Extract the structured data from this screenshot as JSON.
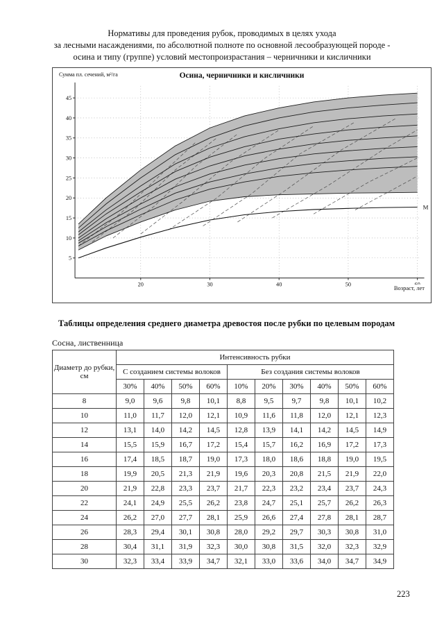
{
  "page": {
    "title_lines": [
      "Нормативы для проведения рубок, проводимых в целях ухода",
      "за лесными насаждениями, по абсолютной полноте по основной лесообразующей породе -",
      "осина и типу (группе) условий местопроизрастания – черничники и кисличники"
    ],
    "section_heading": "Таблицы определения среднего диаметра древостоя после рубки по целевым породам",
    "subheading": "Сосна, лиственница",
    "page_number": "223"
  },
  "chart": {
    "title": "Осина, черничники и кисличники",
    "y_axis_label": "Сумма пл. сечений, м²/га",
    "x_axis_label": "Возраст, лет",
    "y_ticks": [
      5,
      10,
      15,
      20,
      25,
      30,
      35,
      40,
      45
    ],
    "x_ticks": [
      20,
      30,
      40,
      50,
      60
    ],
    "annotation": "М"
  },
  "chart_data": {
    "type": "line",
    "xlabel": "Возраст, лет",
    "ylabel": "Сумма пл. сечений, м²/га",
    "xlim": [
      10.5,
      60.5
    ],
    "ylim": [
      0,
      48
    ],
    "grid": "dotted",
    "x": [
      11,
      15,
      20,
      25,
      30,
      35,
      40,
      45,
      50,
      55,
      60
    ],
    "series": [
      {
        "name": "curve-01",
        "values": [
          13.5,
          20.0,
          27.0,
          33.0,
          37.5,
          40.5,
          42.5,
          44.0,
          45.0,
          45.7,
          46.2
        ]
      },
      {
        "name": "curve-02",
        "values": [
          12.5,
          18.5,
          25.0,
          30.8,
          35.0,
          38.0,
          40.0,
          41.5,
          42.5,
          43.2,
          43.8
        ]
      },
      {
        "name": "curve-03",
        "values": [
          11.5,
          17.0,
          23.0,
          28.5,
          32.5,
          35.3,
          37.3,
          38.8,
          39.8,
          40.5,
          41.0
        ]
      },
      {
        "name": "curve-04",
        "values": [
          10.8,
          16.0,
          21.5,
          26.6,
          30.2,
          32.8,
          34.7,
          36.0,
          37.0,
          37.7,
          38.2
        ]
      },
      {
        "name": "curve-05",
        "values": [
          10.0,
          14.8,
          20.0,
          24.7,
          28.0,
          30.5,
          32.2,
          33.5,
          34.4,
          35.0,
          35.5
        ]
      },
      {
        "name": "curve-06",
        "values": [
          9.3,
          13.8,
          18.5,
          22.8,
          26.0,
          28.2,
          29.8,
          31.0,
          31.8,
          32.4,
          32.8
        ]
      },
      {
        "name": "curve-07",
        "values": [
          8.7,
          12.8,
          17.2,
          21.2,
          24.0,
          26.0,
          27.5,
          28.6,
          29.3,
          29.9,
          30.3
        ]
      },
      {
        "name": "curve-08",
        "values": [
          8.0,
          11.8,
          15.8,
          19.5,
          22.2,
          24.0,
          25.4,
          26.3,
          27.0,
          27.5,
          27.9
        ]
      },
      {
        "name": "curve-09",
        "values": [
          7.0,
          10.5,
          14.0,
          17.0,
          19.2,
          20.3,
          20.8,
          21.0,
          21.2,
          21.3,
          21.4
        ]
      }
    ],
    "band": {
      "upper": 0,
      "lower": 8,
      "color": "#bdbdbd"
    },
    "m_curve": [
      5.0,
      7.5,
      10.2,
      12.6,
      14.5,
      15.8,
      16.6,
      17.1,
      17.4,
      17.6,
      17.7
    ],
    "dashed_series": [
      {
        "x": [
          11,
          17,
          23,
          28
        ],
        "y": [
          8,
          16,
          26,
          34
        ]
      },
      {
        "x": [
          13,
          19,
          25,
          31
        ],
        "y": [
          9,
          17,
          27,
          35
        ]
      },
      {
        "x": [
          16,
          22,
          28,
          34
        ],
        "y": [
          10,
          18,
          28,
          36
        ]
      },
      {
        "x": [
          20,
          26,
          33,
          40
        ],
        "y": [
          11,
          19,
          29,
          37
        ]
      },
      {
        "x": [
          24,
          31,
          38,
          45
        ],
        "y": [
          12,
          20,
          30,
          38
        ]
      },
      {
        "x": [
          29,
          36,
          43,
          51
        ],
        "y": [
          13,
          21,
          31,
          39
        ]
      },
      {
        "x": [
          34,
          41,
          49,
          57
        ],
        "y": [
          14,
          22,
          32,
          40
        ]
      },
      {
        "x": [
          39,
          47,
          55,
          60
        ],
        "y": [
          15,
          23,
          32,
          37
        ]
      },
      {
        "x": [
          45,
          53,
          60
        ],
        "y": [
          16,
          24,
          30
        ]
      },
      {
        "x": [
          51,
          59,
          60
        ],
        "y": [
          17,
          24.5,
          25.5
        ]
      }
    ]
  },
  "table": {
    "col1_header": "Диаметр до рубки, см",
    "group_header": "Интенсивность рубки",
    "subgroup_a": "С созданием системы волоков",
    "subgroup_b": "Без создания системы волоков",
    "percent_a": [
      "30%",
      "40%",
      "50%",
      "60%"
    ],
    "percent_b": [
      "10%",
      "20%",
      "30%",
      "40%",
      "50%",
      "60%"
    ],
    "rows": [
      {
        "d": "8",
        "values": [
          "9,0",
          "9,6",
          "9,8",
          "10,1",
          "8,8",
          "9,5",
          "9,7",
          "9,8",
          "10,1",
          "10,2"
        ]
      },
      {
        "d": "10",
        "values": [
          "11,0",
          "11,7",
          "12,0",
          "12,1",
          "10,9",
          "11,6",
          "11,8",
          "12,0",
          "12,1",
          "12,3"
        ]
      },
      {
        "d": "12",
        "values": [
          "13,1",
          "14,0",
          "14,2",
          "14,5",
          "12,8",
          "13,9",
          "14,1",
          "14,2",
          "14,5",
          "14,9"
        ]
      },
      {
        "d": "14",
        "values": [
          "15,5",
          "15,9",
          "16,7",
          "17,2",
          "15,4",
          "15,7",
          "16,2",
          "16,9",
          "17,2",
          "17,3"
        ]
      },
      {
        "d": "16",
        "values": [
          "17,4",
          "18,5",
          "18,7",
          "19,0",
          "17,3",
          "18,0",
          "18,6",
          "18,8",
          "19,0",
          "19,5"
        ]
      },
      {
        "d": "18",
        "values": [
          "19,9",
          "20,5",
          "21,3",
          "21,9",
          "19,6",
          "20,3",
          "20,8",
          "21,5",
          "21,9",
          "22,0"
        ]
      },
      {
        "d": "20",
        "values": [
          "21,9",
          "22,8",
          "23,3",
          "23,7",
          "21,7",
          "22,3",
          "23,2",
          "23,4",
          "23,7",
          "24,3"
        ]
      },
      {
        "d": "22",
        "values": [
          "24,1",
          "24,9",
          "25,5",
          "26,2",
          "23,8",
          "24,7",
          "25,1",
          "25,7",
          "26,2",
          "26,3"
        ]
      },
      {
        "d": "24",
        "values": [
          "26,2",
          "27,0",
          "27,7",
          "28,1",
          "25,9",
          "26,6",
          "27,4",
          "27,8",
          "28,1",
          "28,7"
        ]
      },
      {
        "d": "26",
        "values": [
          "28,3",
          "29,4",
          "30,1",
          "30,8",
          "28,0",
          "29,2",
          "29,7",
          "30,3",
          "30,8",
          "31,0"
        ]
      },
      {
        "d": "28",
        "values": [
          "30,4",
          "31,1",
          "31,9",
          "32,3",
          "30,0",
          "30,8",
          "31,5",
          "32,0",
          "32,3",
          "32,9"
        ]
      },
      {
        "d": "30",
        "values": [
          "32,3",
          "33,4",
          "33,9",
          "34,7",
          "32,1",
          "33,0",
          "33,6",
          "34,0",
          "34,7",
          "34,9"
        ]
      }
    ]
  }
}
